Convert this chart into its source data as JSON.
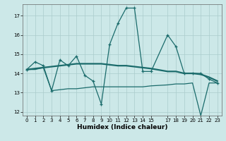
{
  "title": "",
  "xlabel": "Humidex (Indice chaleur)",
  "background_color": "#cce8e8",
  "grid_color": "#aacccc",
  "line_color": "#1a6b6b",
  "xlim": [
    -0.5,
    23.5
  ],
  "ylim": [
    11.8,
    17.6
  ],
  "yticks": [
    12,
    13,
    14,
    15,
    16,
    17
  ],
  "xticks": [
    0,
    1,
    2,
    3,
    4,
    5,
    6,
    7,
    8,
    9,
    10,
    11,
    12,
    13,
    14,
    15,
    17,
    18,
    19,
    20,
    21,
    22,
    23
  ],
  "line1_x": [
    0,
    1,
    2,
    3,
    4,
    5,
    6,
    7,
    8,
    9,
    10,
    11,
    12,
    13,
    14,
    15,
    17,
    18,
    19,
    20,
    21,
    22,
    23
  ],
  "line1_y": [
    14.2,
    14.6,
    14.4,
    13.1,
    14.7,
    14.4,
    14.9,
    13.9,
    13.6,
    12.4,
    15.5,
    16.6,
    17.4,
    17.4,
    14.1,
    14.1,
    16.0,
    15.4,
    14.0,
    14.0,
    14.0,
    13.7,
    13.5
  ],
  "line2_x": [
    0,
    1,
    2,
    3,
    4,
    5,
    6,
    7,
    8,
    9,
    10,
    11,
    12,
    13,
    14,
    15,
    17,
    18,
    19,
    20,
    21,
    22,
    23
  ],
  "line2_y": [
    14.2,
    14.25,
    14.3,
    14.35,
    14.4,
    14.45,
    14.5,
    14.5,
    14.5,
    14.5,
    14.45,
    14.4,
    14.4,
    14.35,
    14.3,
    14.25,
    14.1,
    14.1,
    14.0,
    14.0,
    13.95,
    13.8,
    13.6
  ],
  "line3_x": [
    0,
    1,
    2,
    3,
    4,
    5,
    6,
    7,
    8,
    9,
    10,
    11,
    12,
    13,
    14,
    15,
    17,
    18,
    19,
    20,
    21,
    22,
    23
  ],
  "line3_y": [
    14.2,
    14.2,
    14.3,
    13.1,
    13.15,
    13.2,
    13.2,
    13.25,
    13.3,
    13.3,
    13.3,
    13.3,
    13.3,
    13.3,
    13.3,
    13.35,
    13.4,
    13.45,
    13.45,
    13.5,
    11.8,
    13.5,
    13.5
  ]
}
